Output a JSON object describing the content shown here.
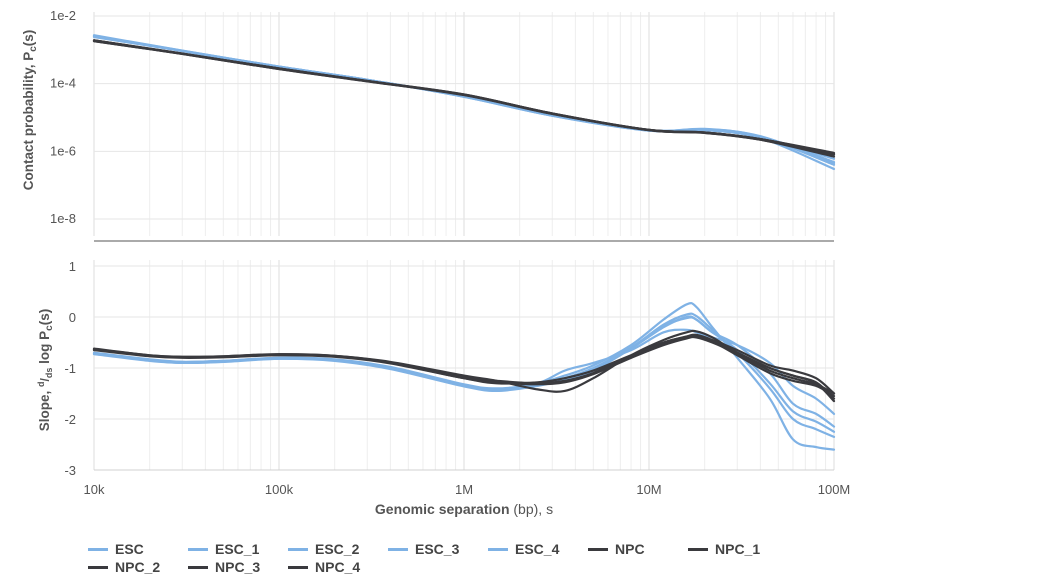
{
  "chart_data": [
    {
      "type": "line",
      "panel": "top",
      "ylabel": "Contact probability, P",
      "ylabel_sub": "c",
      "ylabel_tail": "(s)",
      "x_scale": "log",
      "y_scale": "log",
      "xlim": [
        10000,
        100000000
      ],
      "ylim": [
        1e-08,
        0.01
      ],
      "y_ticks": [
        1e-08,
        1e-06,
        0.0001,
        0.01
      ],
      "y_tick_labels": [
        "1e-8",
        "1e-6",
        "1e-4",
        "1e-2"
      ],
      "x": [
        10000,
        30000,
        100000,
        300000,
        1000000,
        3000000,
        10000000,
        20000000,
        40000000,
        100000000
      ],
      "series": [
        {
          "name": "ESC",
          "color": "#7fb2e5",
          "values": [
            0.0027,
            0.00095,
            0.00032,
            0.00013,
            4.2e-05,
            1.15e-05,
            4.2e-06,
            4.5e-06,
            2.8e-06,
            4.8e-07
          ]
        },
        {
          "name": "ESC_1",
          "color": "#7fb2e5",
          "values": [
            0.0025,
            0.00093,
            0.00031,
            0.00013,
            4.1e-05,
            1.12e-05,
            4.1e-06,
            4.4e-06,
            2.7e-06,
            4.5e-07
          ]
        },
        {
          "name": "ESC_2",
          "color": "#7fb2e5",
          "values": [
            0.0026,
            0.00094,
            0.00032,
            0.00013,
            4.2e-05,
            1.16e-05,
            4.2e-06,
            4.3e-06,
            2.6e-06,
            6e-07
          ]
        },
        {
          "name": "ESC_3",
          "color": "#7fb2e5",
          "values": [
            0.0024,
            0.00092,
            0.00031,
            0.00013,
            4.1e-05,
            1.14e-05,
            4.1e-06,
            4.6e-06,
            2.7e-06,
            4e-07
          ]
        },
        {
          "name": "ESC_4",
          "color": "#7fb2e5",
          "values": [
            0.0025,
            0.00093,
            0.00032,
            0.00013,
            4.2e-05,
            1.13e-05,
            4.2e-06,
            4.2e-06,
            2.5e-06,
            3e-07
          ]
        },
        {
          "name": "NPC",
          "color": "#3a3a3e",
          "values": [
            0.0019,
            0.00078,
            0.00028,
            0.00012,
            4.8e-05,
            1.3e-05,
            4.3e-06,
            3.6e-06,
            2.3e-06,
            8.5e-07
          ]
        },
        {
          "name": "NPC_1",
          "color": "#3a3a3e",
          "values": [
            0.0018,
            0.00076,
            0.00027,
            0.000118,
            4.6e-05,
            1.28e-05,
            4.2e-06,
            3.5e-06,
            2.2e-06,
            8e-07
          ]
        },
        {
          "name": "NPC_2",
          "color": "#3a3a3e",
          "values": [
            0.0019,
            0.00077,
            0.00028,
            0.00012,
            4.7e-05,
            1.32e-05,
            4.3e-06,
            3.6e-06,
            2.3e-06,
            9e-07
          ]
        },
        {
          "name": "NPC_3",
          "color": "#3a3a3e",
          "values": [
            0.0018,
            0.00076,
            0.00027,
            0.000117,
            4.7e-05,
            1.29e-05,
            4.2e-06,
            3.5e-06,
            2.2e-06,
            7e-07
          ]
        },
        {
          "name": "NPC_4",
          "color": "#3a3a3e",
          "values": [
            0.0019,
            0.00077,
            0.00028,
            0.000119,
            4.8e-05,
            1.31e-05,
            4.3e-06,
            3.6e-06,
            2.3e-06,
            8.2e-07
          ]
        }
      ]
    },
    {
      "type": "line",
      "panel": "bottom",
      "ylabel_pre": "Slope, ",
      "ylabel_frac_num": "d",
      "ylabel_frac_den": "ds",
      "ylabel_mid": " log P",
      "ylabel_sub": "c",
      "ylabel_tail": "(s)",
      "x_scale": "log",
      "xlim": [
        10000,
        100000000
      ],
      "ylim": [
        -3,
        1
      ],
      "y_ticks": [
        -3,
        -2,
        -1,
        0,
        1
      ],
      "y_tick_labels": [
        "-3",
        "-2",
        "-1",
        "0",
        "1"
      ],
      "x_ticks": [
        10000,
        100000,
        1000000,
        10000000,
        100000000
      ],
      "x_tick_labels": [
        "10k",
        "100k",
        "1M",
        "10M",
        "100M"
      ],
      "xlabel_bold": "Genomic separation",
      "xlabel_rest": " (bp), s",
      "x": [
        10000,
        20000,
        30000,
        50000,
        100000,
        200000,
        400000,
        1000000,
        1500000,
        2500000,
        3500000,
        5000000,
        8000000,
        12000000,
        16000000,
        18000000,
        22000000,
        30000000,
        45000000,
        60000000,
        80000000,
        100000000
      ],
      "series": [
        {
          "name": "ESC",
          "color": "#7fb2e5",
          "values": [
            -0.72,
            -0.85,
            -0.9,
            -0.88,
            -0.82,
            -0.85,
            -1.0,
            -1.35,
            -1.42,
            -1.3,
            -1.15,
            -0.95,
            -0.55,
            -0.05,
            0.25,
            0.2,
            -0.2,
            -0.8,
            -1.6,
            -2.4,
            -2.55,
            -2.6
          ]
        },
        {
          "name": "ESC_1",
          "color": "#7fb2e5",
          "values": [
            -0.7,
            -0.83,
            -0.88,
            -0.86,
            -0.8,
            -0.83,
            -0.98,
            -1.32,
            -1.4,
            -1.32,
            -1.2,
            -1.0,
            -0.6,
            -0.15,
            0.05,
            0.02,
            -0.25,
            -0.7,
            -1.4,
            -2.0,
            -2.2,
            -2.35
          ]
        },
        {
          "name": "ESC_2",
          "color": "#7fb2e5",
          "values": [
            -0.73,
            -0.86,
            -0.9,
            -0.87,
            -0.82,
            -0.86,
            -1.02,
            -1.36,
            -1.45,
            -1.35,
            -1.22,
            -1.05,
            -0.62,
            -0.2,
            0.0,
            -0.05,
            -0.3,
            -0.65,
            -1.3,
            -1.85,
            -2.05,
            -2.25
          ]
        },
        {
          "name": "ESC_3",
          "color": "#7fb2e5",
          "values": [
            -0.71,
            -0.84,
            -0.88,
            -0.86,
            -0.8,
            -0.84,
            -1.0,
            -1.33,
            -1.42,
            -1.33,
            -1.2,
            -1.02,
            -0.6,
            -0.18,
            -0.02,
            -0.05,
            -0.3,
            -0.55,
            -1.1,
            -1.7,
            -1.9,
            -2.15
          ]
        },
        {
          "name": "ESC_4",
          "color": "#7fb2e5",
          "values": [
            -0.72,
            -0.85,
            -0.89,
            -0.87,
            -0.81,
            -0.85,
            -1.01,
            -1.34,
            -1.43,
            -1.3,
            -1.05,
            -0.9,
            -0.65,
            -0.3,
            -0.25,
            -0.3,
            -0.4,
            -0.55,
            -0.9,
            -1.35,
            -1.6,
            -1.9
          ]
        },
        {
          "name": "NPC",
          "color": "#3a3a3e",
          "values": [
            -0.62,
            -0.75,
            -0.78,
            -0.77,
            -0.73,
            -0.76,
            -0.88,
            -1.15,
            -1.25,
            -1.42,
            -1.45,
            -1.2,
            -0.75,
            -0.45,
            -0.3,
            -0.28,
            -0.4,
            -0.7,
            -1.0,
            -1.15,
            -1.3,
            -1.65
          ]
        },
        {
          "name": "NPC_1",
          "color": "#3a3a3e",
          "values": [
            -0.64,
            -0.76,
            -0.79,
            -0.78,
            -0.74,
            -0.77,
            -0.9,
            -1.2,
            -1.3,
            -1.28,
            -1.2,
            -1.05,
            -0.75,
            -0.5,
            -0.38,
            -0.35,
            -0.45,
            -0.65,
            -0.95,
            -1.05,
            -1.2,
            -1.5
          ]
        },
        {
          "name": "NPC_2",
          "color": "#3a3a3e",
          "values": [
            -0.63,
            -0.75,
            -0.78,
            -0.77,
            -0.73,
            -0.76,
            -0.89,
            -1.18,
            -1.25,
            -1.3,
            -1.25,
            -1.1,
            -0.78,
            -0.52,
            -0.4,
            -0.38,
            -0.48,
            -0.75,
            -1.1,
            -1.25,
            -1.35,
            -1.55
          ]
        },
        {
          "name": "NPC_3",
          "color": "#3a3a3e",
          "values": [
            -0.65,
            -0.77,
            -0.8,
            -0.79,
            -0.75,
            -0.78,
            -0.91,
            -1.2,
            -1.28,
            -1.32,
            -1.28,
            -1.12,
            -0.8,
            -0.55,
            -0.42,
            -0.4,
            -0.5,
            -0.72,
            -1.05,
            -1.2,
            -1.32,
            -1.5
          ]
        },
        {
          "name": "NPC_4",
          "color": "#3a3a3e",
          "values": [
            -0.64,
            -0.76,
            -0.79,
            -0.78,
            -0.74,
            -0.77,
            -0.9,
            -1.19,
            -1.27,
            -1.3,
            -1.26,
            -1.1,
            -0.77,
            -0.5,
            -0.39,
            -0.37,
            -0.46,
            -0.7,
            -1.0,
            -1.15,
            -1.28,
            -1.6
          ]
        }
      ]
    }
  ],
  "legend": [
    {
      "label": "ESC",
      "color": "#7fb2e5"
    },
    {
      "label": "ESC_1",
      "color": "#7fb2e5"
    },
    {
      "label": "ESC_2",
      "color": "#7fb2e5"
    },
    {
      "label": "ESC_3",
      "color": "#7fb2e5"
    },
    {
      "label": "ESC_4",
      "color": "#7fb2e5"
    },
    {
      "label": "NPC",
      "color": "#3a3a3e"
    },
    {
      "label": "NPC_1",
      "color": "#3a3a3e"
    },
    {
      "label": "NPC_2",
      "color": "#3a3a3e"
    },
    {
      "label": "NPC_3",
      "color": "#3a3a3e"
    },
    {
      "label": "NPC_4",
      "color": "#3a3a3e"
    }
  ]
}
